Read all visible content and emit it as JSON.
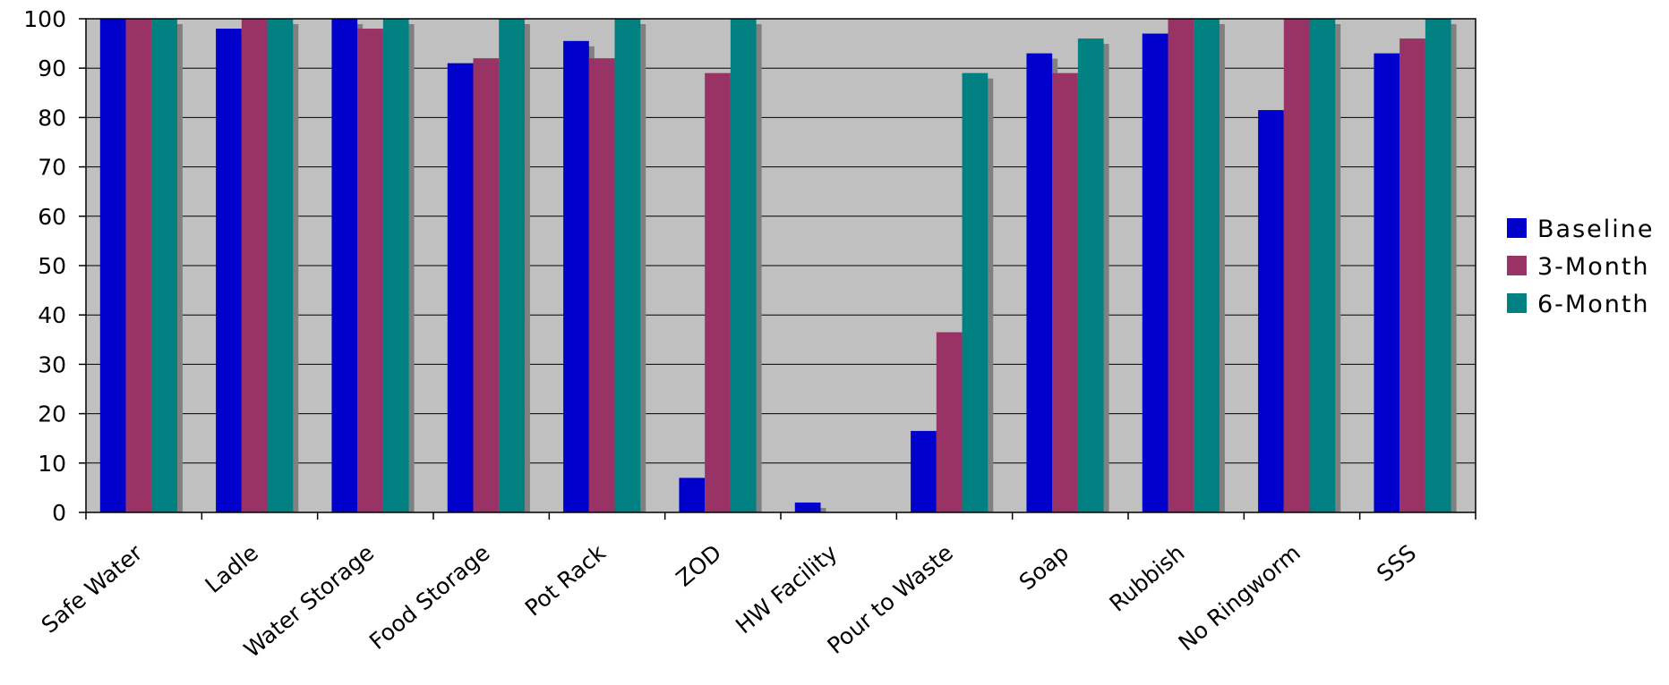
{
  "chart_data": {
    "type": "bar",
    "title": "",
    "xlabel": "",
    "ylabel": "",
    "ylim": [
      0,
      100
    ],
    "yticks": [
      0,
      10,
      20,
      30,
      40,
      50,
      60,
      70,
      80,
      90,
      100
    ],
    "grid": true,
    "legend_position": "right",
    "categories": [
      "Safe Water",
      "Ladle",
      "Water Storage",
      "Food Storage",
      "Pot Rack",
      "ZOD",
      "HW Facility",
      "Pour to Waste",
      "Soap",
      "Rubbish",
      "No Ringworm",
      "SSS"
    ],
    "series": [
      {
        "name": "Baseline",
        "color": "#0000CC",
        "values": [
          100,
          98,
          100,
          91,
          95.5,
          7,
          2,
          16.5,
          93,
          97,
          81.5,
          93
        ]
      },
      {
        "name": "3-Month",
        "color": "#993366",
        "values": [
          100,
          100,
          98,
          92,
          92,
          89,
          0,
          36.5,
          89,
          100,
          100,
          96
        ]
      },
      {
        "name": "6-Month",
        "color": "#008080",
        "values": [
          100,
          100,
          100,
          100,
          100,
          100,
          0,
          89,
          96,
          100,
          100,
          100
        ]
      }
    ],
    "colors": {
      "plot_background": "#C0C0C0",
      "gridline": "#000000",
      "shadow": "#808080"
    }
  }
}
